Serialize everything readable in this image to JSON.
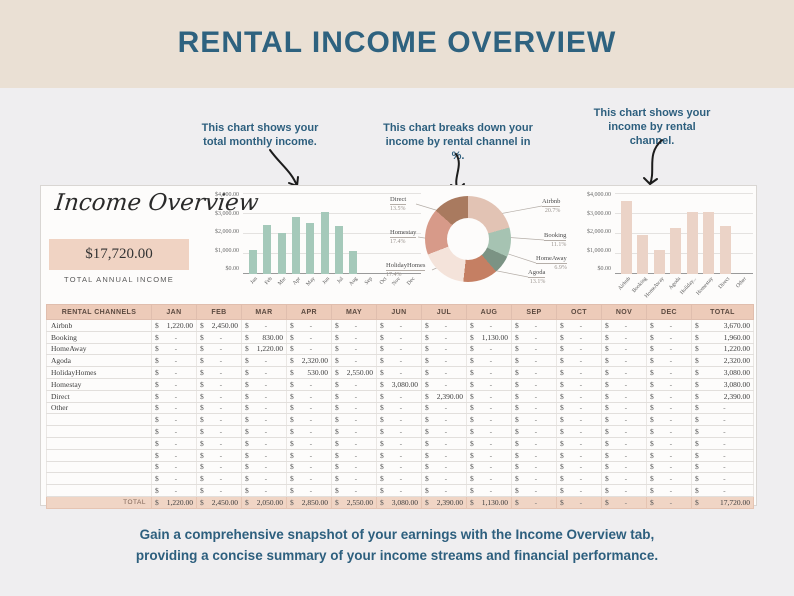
{
  "header": {
    "title": "RENTAL INCOME OVERVIEW"
  },
  "annotations": [
    {
      "text": "This chart shows your total monthly income."
    },
    {
      "text": "This chart breaks down your income by rental channel in %."
    },
    {
      "text": "This chart shows your income by rental channel."
    }
  ],
  "sheet": {
    "logo_text": "Income Overview",
    "total_annual_income": "$17,720.00",
    "total_annual_label": "TOTAL ANNUAL INCOME"
  },
  "caption": {
    "line1": "Gain a comprehensive snapshot of your earnings with the Income Overview tab,",
    "line2": "providing a concise summary of your income streams and financial performance."
  },
  "colors": {
    "page_bg": "#efeef0",
    "band_bg": "#eae0d4",
    "title_text": "#2e627f",
    "card_bg": "#fdfcfb",
    "pink_fill": "#f0d3c3",
    "table_header_bg": "#edcbb9",
    "total_row_bg": "#f0d5c5",
    "green_bar": "#a5c9ba",
    "pink_bar": "#ebd3c7"
  },
  "chart_data": [
    {
      "type": "bar",
      "name": "monthly-income",
      "categories": [
        "Jan",
        "Feb",
        "Mar",
        "Apr",
        "May",
        "Jun",
        "Jul",
        "Aug",
        "Sep",
        "Oct",
        "Nov",
        "Dec"
      ],
      "values": [
        1220,
        2450,
        2050,
        2850,
        2550,
        3080,
        2390,
        1130,
        0,
        0,
        0,
        0
      ],
      "ylim": [
        0,
        4000
      ],
      "ytick_labels": [
        "$0.00",
        "$1,000.00",
        "$2,000.00",
        "$3,000.00",
        "$4,000.00"
      ],
      "bar_color": "#a5c9ba",
      "grid": true
    },
    {
      "type": "pie",
      "name": "income-share-by-channel",
      "labels": [
        "Airbnb",
        "Booking",
        "HomeAway",
        "Agoda",
        "HolidayHomes",
        "Homestay",
        "Direct"
      ],
      "values": [
        20.7,
        11.1,
        6.9,
        13.1,
        17.4,
        17.4,
        13.5
      ],
      "pct_labels": [
        "20.7%",
        "11.1%",
        "6.9%",
        "13.1%",
        "17.4%",
        "17.4%",
        "13.5%"
      ],
      "colors": [
        "#e2c3b4",
        "#a6c3b2",
        "#7b9384",
        "#c57f63",
        "#f4e3da",
        "#d79a89",
        "#a97a5f"
      ],
      "donut": true
    },
    {
      "type": "bar",
      "name": "income-by-channel",
      "categories": [
        "Airbnb",
        "Booking",
        "HomeAway",
        "Agoda",
        "Holiday...",
        "Homestay",
        "Direct",
        "Other"
      ],
      "values": [
        3670,
        1960,
        1220,
        2320,
        3080,
        3080,
        2390,
        0
      ],
      "ylim": [
        0,
        4000
      ],
      "ytick_labels": [
        "$0.00",
        "$1,000.00",
        "$2,000.00",
        "$3,000.00",
        "$4,000.00"
      ],
      "bar_color": "#ebd3c7",
      "grid": true
    }
  ],
  "table": {
    "headers": [
      "RENTAL CHANNELS",
      "JAN",
      "FEB",
      "MAR",
      "APR",
      "MAY",
      "JUN",
      "JUL",
      "AUG",
      "SEP",
      "OCT",
      "NOV",
      "DEC",
      "TOTAL"
    ],
    "rows": [
      {
        "label": "Airbnb",
        "values": [
          1220,
          2450,
          null,
          null,
          null,
          null,
          null,
          null,
          null,
          null,
          null,
          null
        ],
        "total": 3670
      },
      {
        "label": "Booking",
        "values": [
          null,
          null,
          830,
          null,
          null,
          null,
          null,
          1130,
          null,
          null,
          null,
          null
        ],
        "total": 1960
      },
      {
        "label": "HomeAway",
        "values": [
          null,
          null,
          1220,
          null,
          null,
          null,
          null,
          null,
          null,
          null,
          null,
          null
        ],
        "total": 1220
      },
      {
        "label": "Agoda",
        "values": [
          null,
          null,
          null,
          2320,
          null,
          null,
          null,
          null,
          null,
          null,
          null,
          null
        ],
        "total": 2320
      },
      {
        "label": "HolidayHomes",
        "values": [
          null,
          null,
          null,
          530,
          2550,
          null,
          null,
          null,
          null,
          null,
          null,
          null
        ],
        "total": 3080
      },
      {
        "label": "Homestay",
        "values": [
          null,
          null,
          null,
          null,
          null,
          3080,
          null,
          null,
          null,
          null,
          null,
          null
        ],
        "total": 3080
      },
      {
        "label": "Direct",
        "values": [
          null,
          null,
          null,
          null,
          null,
          null,
          2390,
          null,
          null,
          null,
          null,
          null
        ],
        "total": 2390
      },
      {
        "label": "Other",
        "values": [
          null,
          null,
          null,
          null,
          null,
          null,
          null,
          null,
          null,
          null,
          null,
          null
        ],
        "total": null
      }
    ],
    "empty_row_count": 7,
    "total_row": {
      "label": "TOTAL",
      "values": [
        1220,
        2450,
        2050,
        2850,
        2550,
        3080,
        2390,
        1130,
        null,
        null,
        null,
        null
      ],
      "total": 17720
    }
  }
}
